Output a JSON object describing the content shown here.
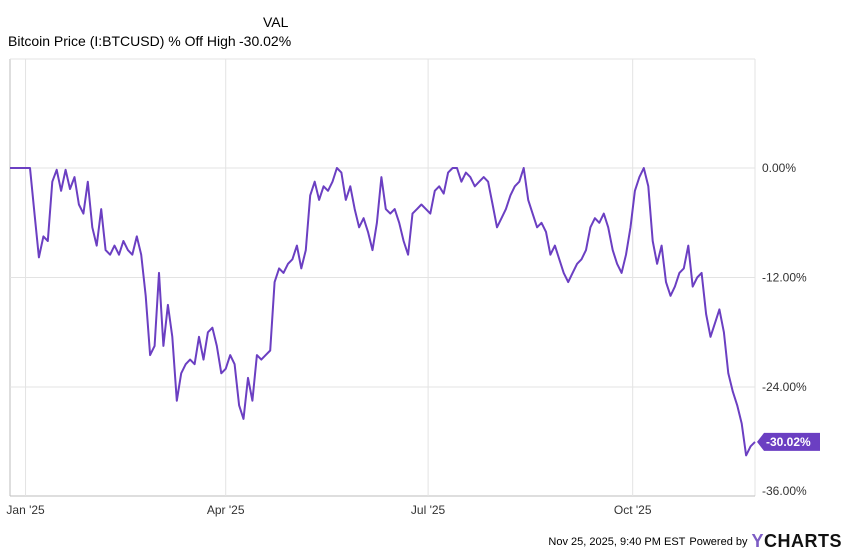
{
  "legend": {
    "column_header": "VAL",
    "series_name": "Bitcoin Price (I:BTCUSD) % Off High",
    "series_value": "-30.02%"
  },
  "colors": {
    "line": "#6b3fc2",
    "grid": "#e3e3e3",
    "axis": "#bdbdbd"
  },
  "chart_data": {
    "type": "line",
    "title": "",
    "xlabel": "",
    "ylabel": "",
    "ylim": [
      -36,
      0
    ],
    "y_ticks": [
      {
        "value": 0,
        "label": "0.00%"
      },
      {
        "value": -12,
        "label": "-12.00%"
      },
      {
        "value": -24,
        "label": "-24.00%"
      },
      {
        "value": -36,
        "label": "-36.00%"
      }
    ],
    "x_ticks": [
      {
        "date": "2025-01-01",
        "label": "Jan '25"
      },
      {
        "date": "2025-04-01",
        "label": "Apr '25"
      },
      {
        "date": "2025-07-01",
        "label": "Jul '25"
      },
      {
        "date": "2025-10-01",
        "label": "Oct '25"
      }
    ],
    "x_range": [
      "2024-12-25",
      "2025-11-25"
    ],
    "grid": true,
    "last_value_label": "-30.02%",
    "series": [
      {
        "name": "Bitcoin Price (I:BTCUSD) % Off High",
        "points": [
          [
            "2024-12-25",
            0.0
          ],
          [
            "2025-01-01",
            0.0
          ],
          [
            "2025-01-03",
            0.0
          ],
          [
            "2025-01-05",
            -5.0
          ],
          [
            "2025-01-07",
            -9.8
          ],
          [
            "2025-01-09",
            -7.5
          ],
          [
            "2025-01-11",
            -8.0
          ],
          [
            "2025-01-13",
            -1.5
          ],
          [
            "2025-01-15",
            -0.2
          ],
          [
            "2025-01-17",
            -2.5
          ],
          [
            "2025-01-19",
            -0.2
          ],
          [
            "2025-01-21",
            -2.3
          ],
          [
            "2025-01-23",
            -1.0
          ],
          [
            "2025-01-25",
            -4.0
          ],
          [
            "2025-01-27",
            -5.0
          ],
          [
            "2025-01-29",
            -1.5
          ],
          [
            "2025-01-31",
            -6.5
          ],
          [
            "2025-02-02",
            -8.5
          ],
          [
            "2025-02-04",
            -4.5
          ],
          [
            "2025-02-06",
            -9.0
          ],
          [
            "2025-02-08",
            -9.5
          ],
          [
            "2025-02-10",
            -8.5
          ],
          [
            "2025-02-12",
            -9.5
          ],
          [
            "2025-02-14",
            -8.0
          ],
          [
            "2025-02-16",
            -9.0
          ],
          [
            "2025-02-18",
            -9.5
          ],
          [
            "2025-02-20",
            -7.5
          ],
          [
            "2025-02-22",
            -9.5
          ],
          [
            "2025-02-24",
            -14.0
          ],
          [
            "2025-02-26",
            -20.5
          ],
          [
            "2025-02-28",
            -19.5
          ],
          [
            "2025-03-02",
            -11.5
          ],
          [
            "2025-03-04",
            -19.5
          ],
          [
            "2025-03-06",
            -15.0
          ],
          [
            "2025-03-08",
            -18.5
          ],
          [
            "2025-03-10",
            -25.5
          ],
          [
            "2025-03-12",
            -22.5
          ],
          [
            "2025-03-14",
            -21.5
          ],
          [
            "2025-03-16",
            -21.0
          ],
          [
            "2025-03-18",
            -21.5
          ],
          [
            "2025-03-20",
            -18.5
          ],
          [
            "2025-03-22",
            -21.0
          ],
          [
            "2025-03-24",
            -18.0
          ],
          [
            "2025-03-26",
            -17.5
          ],
          [
            "2025-03-28",
            -19.5
          ],
          [
            "2025-03-30",
            -22.5
          ],
          [
            "2025-04-01",
            -22.0
          ],
          [
            "2025-04-03",
            -20.5
          ],
          [
            "2025-04-05",
            -21.5
          ],
          [
            "2025-04-07",
            -26.0
          ],
          [
            "2025-04-09",
            -27.5
          ],
          [
            "2025-04-11",
            -23.0
          ],
          [
            "2025-04-13",
            -25.5
          ],
          [
            "2025-04-15",
            -20.5
          ],
          [
            "2025-04-17",
            -21.0
          ],
          [
            "2025-04-19",
            -20.5
          ],
          [
            "2025-04-21",
            -20.0
          ],
          [
            "2025-04-23",
            -12.5
          ],
          [
            "2025-04-25",
            -11.0
          ],
          [
            "2025-04-27",
            -11.5
          ],
          [
            "2025-04-29",
            -10.5
          ],
          [
            "2025-05-01",
            -10.0
          ],
          [
            "2025-05-03",
            -8.5
          ],
          [
            "2025-05-05",
            -11.0
          ],
          [
            "2025-05-07",
            -9.0
          ],
          [
            "2025-05-09",
            -3.0
          ],
          [
            "2025-05-11",
            -1.5
          ],
          [
            "2025-05-13",
            -3.5
          ],
          [
            "2025-05-15",
            -2.0
          ],
          [
            "2025-05-17",
            -2.5
          ],
          [
            "2025-05-19",
            -1.5
          ],
          [
            "2025-05-21",
            0.0
          ],
          [
            "2025-05-23",
            -0.5
          ],
          [
            "2025-05-25",
            -3.5
          ],
          [
            "2025-05-27",
            -2.0
          ],
          [
            "2025-05-29",
            -4.5
          ],
          [
            "2025-05-31",
            -6.5
          ],
          [
            "2025-06-02",
            -5.5
          ],
          [
            "2025-06-04",
            -7.0
          ],
          [
            "2025-06-06",
            -9.0
          ],
          [
            "2025-06-08",
            -6.0
          ],
          [
            "2025-06-10",
            -1.0
          ],
          [
            "2025-06-12",
            -4.5
          ],
          [
            "2025-06-14",
            -5.0
          ],
          [
            "2025-06-16",
            -4.5
          ],
          [
            "2025-06-18",
            -6.0
          ],
          [
            "2025-06-20",
            -8.0
          ],
          [
            "2025-06-22",
            -9.5
          ],
          [
            "2025-06-24",
            -5.0
          ],
          [
            "2025-06-26",
            -4.5
          ],
          [
            "2025-06-28",
            -4.0
          ],
          [
            "2025-06-30",
            -4.5
          ],
          [
            "2025-07-02",
            -5.0
          ],
          [
            "2025-07-04",
            -2.5
          ],
          [
            "2025-07-06",
            -2.0
          ],
          [
            "2025-07-08",
            -2.8
          ],
          [
            "2025-07-10",
            -0.5
          ],
          [
            "2025-07-12",
            0.0
          ],
          [
            "2025-07-14",
            0.0
          ],
          [
            "2025-07-16",
            -1.5
          ],
          [
            "2025-07-18",
            -0.5
          ],
          [
            "2025-07-20",
            -1.0
          ],
          [
            "2025-07-22",
            -2.0
          ],
          [
            "2025-07-24",
            -1.5
          ],
          [
            "2025-07-26",
            -1.0
          ],
          [
            "2025-07-28",
            -1.5
          ],
          [
            "2025-07-30",
            -4.0
          ],
          [
            "2025-08-01",
            -6.5
          ],
          [
            "2025-08-03",
            -5.5
          ],
          [
            "2025-08-05",
            -4.5
          ],
          [
            "2025-08-07",
            -3.0
          ],
          [
            "2025-08-09",
            -2.0
          ],
          [
            "2025-08-11",
            -1.5
          ],
          [
            "2025-08-13",
            0.0
          ],
          [
            "2025-08-15",
            -3.5
          ],
          [
            "2025-08-17",
            -5.0
          ],
          [
            "2025-08-19",
            -6.5
          ],
          [
            "2025-08-21",
            -6.0
          ],
          [
            "2025-08-23",
            -7.0
          ],
          [
            "2025-08-25",
            -9.5
          ],
          [
            "2025-08-27",
            -8.5
          ],
          [
            "2025-08-29",
            -10.0
          ],
          [
            "2025-08-31",
            -11.5
          ],
          [
            "2025-09-02",
            -12.5
          ],
          [
            "2025-09-04",
            -11.5
          ],
          [
            "2025-09-06",
            -10.5
          ],
          [
            "2025-09-08",
            -10.0
          ],
          [
            "2025-09-10",
            -9.0
          ],
          [
            "2025-09-12",
            -6.5
          ],
          [
            "2025-09-14",
            -5.5
          ],
          [
            "2025-09-16",
            -6.0
          ],
          [
            "2025-09-18",
            -5.0
          ],
          [
            "2025-09-20",
            -6.5
          ],
          [
            "2025-09-22",
            -9.0
          ],
          [
            "2025-09-24",
            -10.5
          ],
          [
            "2025-09-26",
            -11.5
          ],
          [
            "2025-09-28",
            -9.5
          ],
          [
            "2025-09-30",
            -6.5
          ],
          [
            "2025-10-02",
            -2.5
          ],
          [
            "2025-10-04",
            -1.0
          ],
          [
            "2025-10-06",
            0.0
          ],
          [
            "2025-10-08",
            -2.0
          ],
          [
            "2025-10-10",
            -8.0
          ],
          [
            "2025-10-12",
            -10.5
          ],
          [
            "2025-10-14",
            -8.5
          ],
          [
            "2025-10-16",
            -12.5
          ],
          [
            "2025-10-18",
            -14.0
          ],
          [
            "2025-10-20",
            -13.0
          ],
          [
            "2025-10-22",
            -11.5
          ],
          [
            "2025-10-24",
            -11.0
          ],
          [
            "2025-10-26",
            -8.5
          ],
          [
            "2025-10-28",
            -13.0
          ],
          [
            "2025-10-30",
            -12.0
          ],
          [
            "2025-11-01",
            -11.5
          ],
          [
            "2025-11-03",
            -16.0
          ],
          [
            "2025-11-05",
            -18.5
          ],
          [
            "2025-11-07",
            -17.0
          ],
          [
            "2025-11-09",
            -15.5
          ],
          [
            "2025-11-11",
            -18.0
          ],
          [
            "2025-11-13",
            -22.5
          ],
          [
            "2025-11-15",
            -24.5
          ],
          [
            "2025-11-17",
            -26.0
          ],
          [
            "2025-11-19",
            -28.0
          ],
          [
            "2025-11-21",
            -31.5
          ],
          [
            "2025-11-23",
            -30.5
          ],
          [
            "2025-11-25",
            -30.02
          ]
        ]
      }
    ]
  },
  "footer": {
    "timestamp": "Nov 25, 2025, 9:40 PM EST",
    "powered_by": "Powered by",
    "brand_y": "Y",
    "brand_rest": "CHARTS"
  }
}
